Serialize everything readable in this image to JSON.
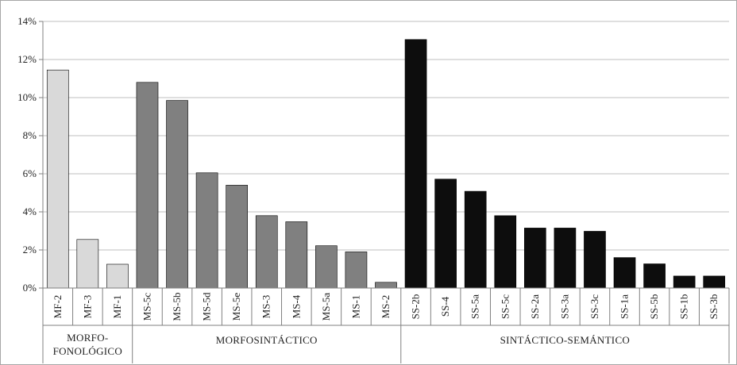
{
  "chart_data": {
    "type": "bar",
    "ylim": [
      0,
      14
    ],
    "yticks": [
      0,
      2,
      4,
      6,
      8,
      10,
      12,
      14
    ],
    "ytick_labels": [
      "0%",
      "2%",
      "4%",
      "6%",
      "8%",
      "10%",
      "12%",
      "14%"
    ],
    "y_unit": "%",
    "grid": true,
    "legend": "none",
    "categories": [
      "MF-2",
      "MF-3",
      "MF-1",
      "MS-5c",
      "MS-5b",
      "MS-5d",
      "MS-5e",
      "MS-3",
      "MS-4",
      "MS-5a",
      "MS-1",
      "MS-2",
      "SS-2b",
      "SS-4",
      "SS-5a",
      "SS-5c",
      "SS-2a",
      "SS-3a",
      "SS-3c",
      "SS-1a",
      "SS-5b",
      "SS-1b",
      "SS-3b"
    ],
    "values": [
      11.45,
      2.55,
      1.25,
      10.8,
      9.85,
      6.05,
      5.4,
      3.8,
      3.48,
      2.22,
      1.9,
      0.3,
      13.05,
      5.72,
      5.08,
      3.8,
      3.15,
      3.15,
      2.98,
      1.6,
      1.27,
      0.63,
      0.63
    ],
    "groups": [
      {
        "label_lines": [
          "MORFO-",
          "FONOLÓGICO"
        ],
        "start": 0,
        "count": 3,
        "color": "#d9d9d9"
      },
      {
        "label_lines": [
          "MORFOSINTÁCTICO"
        ],
        "start": 3,
        "count": 9,
        "color": "#808080"
      },
      {
        "label_lines": [
          "SINTÁCTICO-SEMÁNTICO"
        ],
        "start": 12,
        "count": 11,
        "color": "#0d0d0d"
      }
    ],
    "colors": {
      "gridline": "#bfbfbf",
      "axis": "#808080",
      "bar_outline": "#000000"
    }
  }
}
